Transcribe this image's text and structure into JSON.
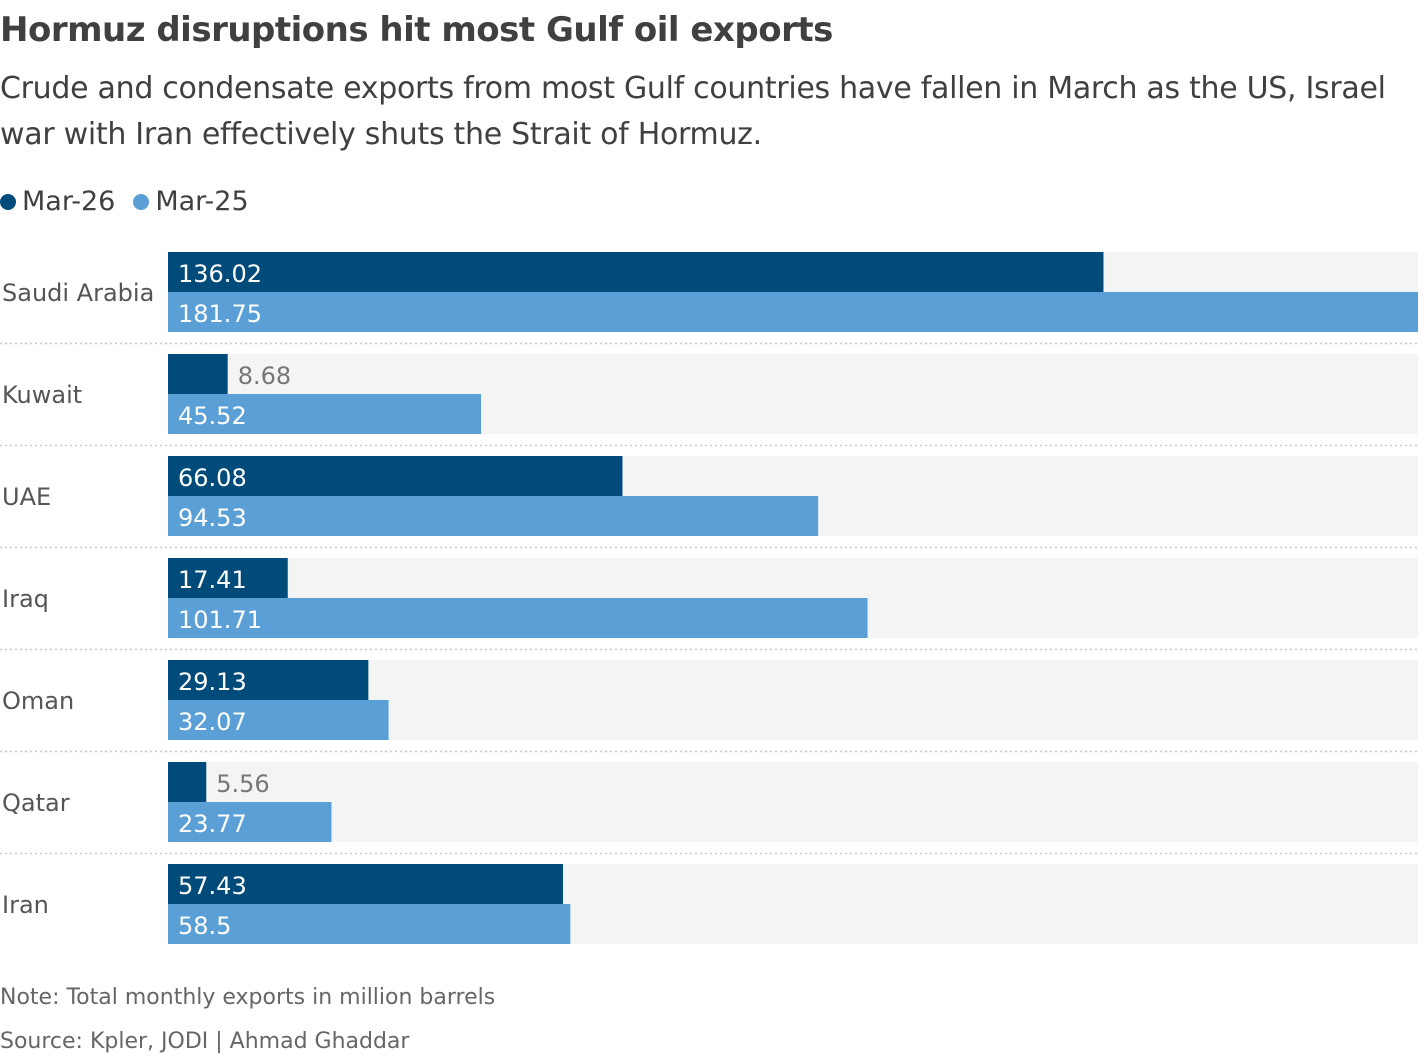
{
  "header": {
    "title": "Hormuz disruptions hit most Gulf oil exports",
    "subtitle": "Crude and condensate exports from most Gulf countries have fallen in March as the US, Israel war with Iran effectively shuts the Strait of Hormuz."
  },
  "footer": {
    "note": "Note: Total monthly exports in million barrels",
    "source": "Source: Kpler, JODI | Ahmad Ghaddar"
  },
  "chart_data": {
    "type": "bar",
    "orientation": "horizontal",
    "categories": [
      "Saudi Arabia",
      "Kuwait",
      "UAE",
      "Iraq",
      "Oman",
      "Qatar",
      "Iran"
    ],
    "series": [
      {
        "name": "Mar-26",
        "color": "#004b7a",
        "values": [
          136.02,
          8.68,
          66.08,
          17.41,
          29.13,
          5.56,
          57.43
        ],
        "labels": [
          "136.02",
          "8.68",
          "66.08",
          "17.41",
          "29.13",
          "5.56",
          "57.43"
        ]
      },
      {
        "name": "Mar-25",
        "color": "#5a9fd6",
        "values": [
          181.75,
          45.52,
          94.53,
          101.71,
          32.07,
          23.77,
          58.5
        ],
        "labels": [
          "181.75",
          "45.52",
          "94.53",
          "101.71",
          "32.07",
          "23.77",
          "58.5"
        ]
      }
    ],
    "xlim": [
      0,
      181.75
    ],
    "legend": "top-left",
    "grid": false,
    "background_track_color": "#f4f4f4"
  }
}
